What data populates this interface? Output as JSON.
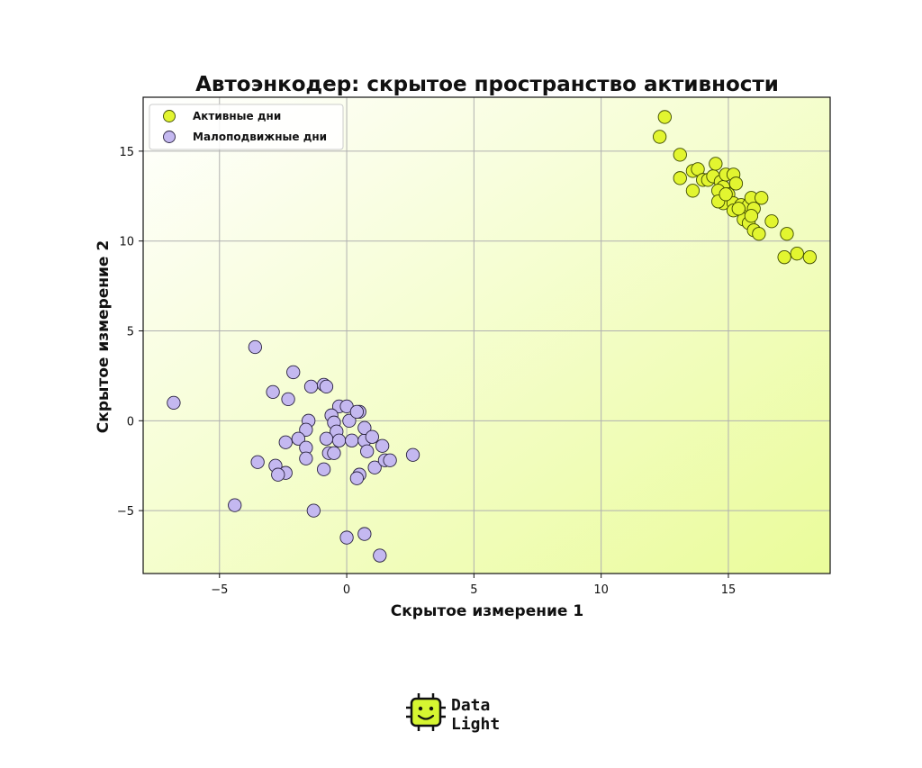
{
  "chart_data": {
    "type": "scatter",
    "title": "Автоэнкодер: скрытое пространство активности",
    "xlabel": "Скрытое измерение 1",
    "ylabel": "Скрытое измерение 2",
    "xlim": [
      -8,
      19
    ],
    "ylim": [
      -8.5,
      18
    ],
    "xticks": [
      -5,
      0,
      5,
      10,
      15
    ],
    "xtick_labels": [
      "−5",
      "0",
      "5",
      "10",
      "15"
    ],
    "yticks": [
      -5,
      0,
      5,
      10,
      15
    ],
    "ytick_labels": [
      "−5",
      "0",
      "5",
      "10",
      "15"
    ],
    "grid": true,
    "legend_position": "top-left",
    "background_gradient": [
      "#ffffff",
      "#eafc9a"
    ],
    "series": [
      {
        "name": "Активные дни",
        "color": "#e2f530",
        "edge": "#3d4a00",
        "points": [
          [
            12.5,
            16.9
          ],
          [
            12.3,
            15.8
          ],
          [
            13.1,
            14.8
          ],
          [
            13.1,
            13.5
          ],
          [
            13.6,
            13.9
          ],
          [
            13.8,
            14.0
          ],
          [
            13.6,
            12.8
          ],
          [
            14.0,
            13.4
          ],
          [
            14.2,
            13.4
          ],
          [
            14.4,
            13.6
          ],
          [
            14.5,
            14.3
          ],
          [
            14.7,
            13.3
          ],
          [
            14.8,
            13.0
          ],
          [
            14.6,
            12.8
          ],
          [
            14.9,
            13.7
          ],
          [
            15.2,
            13.7
          ],
          [
            15.3,
            13.2
          ],
          [
            15.0,
            12.6
          ],
          [
            14.8,
            12.1
          ],
          [
            14.6,
            12.2
          ],
          [
            15.2,
            12.1
          ],
          [
            15.5,
            12.0
          ],
          [
            15.7,
            11.6
          ],
          [
            15.8,
            12.0
          ],
          [
            15.9,
            12.4
          ],
          [
            16.0,
            11.8
          ],
          [
            16.3,
            12.4
          ],
          [
            15.2,
            11.7
          ],
          [
            15.6,
            11.2
          ],
          [
            15.8,
            11.0
          ],
          [
            16.0,
            10.6
          ],
          [
            16.2,
            10.4
          ],
          [
            16.7,
            11.1
          ],
          [
            17.3,
            10.4
          ],
          [
            17.2,
            9.1
          ],
          [
            17.7,
            9.3
          ],
          [
            18.2,
            9.1
          ],
          [
            14.9,
            12.6
          ],
          [
            15.4,
            11.8
          ],
          [
            15.9,
            11.4
          ]
        ]
      },
      {
        "name": "Малоподвижные дни",
        "color": "#c4b8f0",
        "edge": "#2a2340",
        "points": [
          [
            -6.8,
            1.0
          ],
          [
            -3.6,
            4.1
          ],
          [
            -2.1,
            2.7
          ],
          [
            -2.9,
            1.6
          ],
          [
            -2.3,
            1.2
          ],
          [
            -1.4,
            1.9
          ],
          [
            -0.9,
            2.0
          ],
          [
            -0.8,
            1.9
          ],
          [
            -0.3,
            0.8
          ],
          [
            0.0,
            0.8
          ],
          [
            0.5,
            0.5
          ],
          [
            -0.6,
            0.3
          ],
          [
            -1.5,
            0.0
          ],
          [
            -0.5,
            -0.1
          ],
          [
            0.1,
            0.0
          ],
          [
            -1.6,
            -0.5
          ],
          [
            -0.4,
            -0.6
          ],
          [
            -1.9,
            -1.0
          ],
          [
            -2.4,
            -1.2
          ],
          [
            -0.8,
            -1.0
          ],
          [
            -0.3,
            -1.1
          ],
          [
            0.2,
            -1.1
          ],
          [
            0.7,
            -1.1
          ],
          [
            0.7,
            -0.4
          ],
          [
            1.0,
            -0.9
          ],
          [
            1.4,
            -1.4
          ],
          [
            0.8,
            -1.7
          ],
          [
            -1.6,
            -1.5
          ],
          [
            -0.7,
            -1.8
          ],
          [
            -0.5,
            -1.8
          ],
          [
            -1.6,
            -2.1
          ],
          [
            -3.5,
            -2.3
          ],
          [
            -2.8,
            -2.5
          ],
          [
            -2.4,
            -2.9
          ],
          [
            -2.7,
            -3.0
          ],
          [
            -0.9,
            -2.7
          ],
          [
            0.5,
            -3.0
          ],
          [
            0.4,
            -3.2
          ],
          [
            1.1,
            -2.6
          ],
          [
            1.5,
            -2.2
          ],
          [
            1.7,
            -2.2
          ],
          [
            2.6,
            -1.9
          ],
          [
            -4.4,
            -4.7
          ],
          [
            -1.3,
            -5.0
          ],
          [
            0.0,
            -6.5
          ],
          [
            0.7,
            -6.3
          ],
          [
            1.3,
            -7.5
          ],
          [
            0.4,
            0.5
          ]
        ]
      }
    ]
  },
  "brand": {
    "line1": "Data",
    "line2": "Light",
    "icon": "chip-smiley-icon",
    "icon_color": "#d6f531"
  }
}
